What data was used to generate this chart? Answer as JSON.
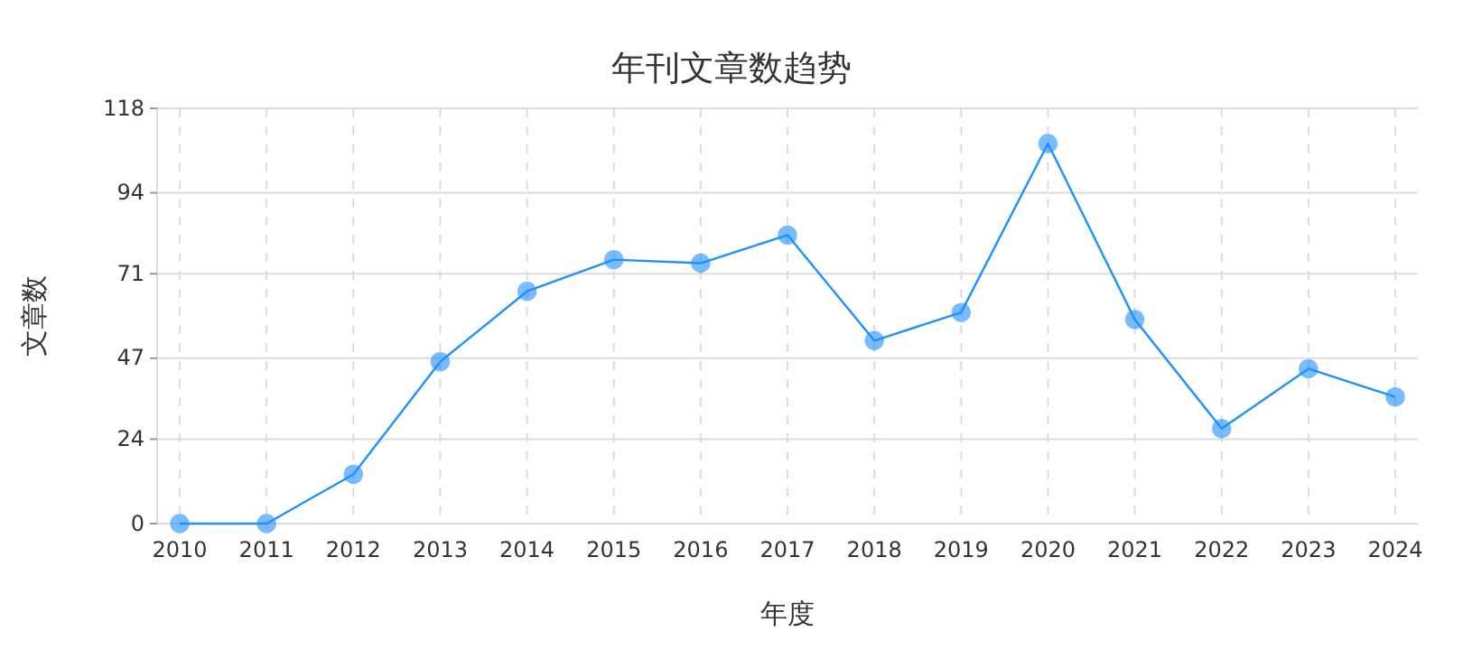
{
  "chart_data": {
    "type": "line",
    "title": "年刊文章数趋势",
    "xlabel": "年度",
    "ylabel": "文章数",
    "categories": [
      "2010",
      "2011",
      "2012",
      "2013",
      "2014",
      "2015",
      "2016",
      "2017",
      "2018",
      "2019",
      "2020",
      "2021",
      "2022",
      "2023",
      "2024"
    ],
    "series": [
      {
        "color": "#1e90ff",
        "values": [
          0,
          0,
          14,
          46,
          66,
          75,
          74,
          82,
          52,
          60,
          108,
          58,
          27,
          44,
          36
        ]
      }
    ],
    "ylim": [
      0,
      118
    ],
    "yticks": [
      0,
      24,
      47,
      71,
      94,
      118
    ],
    "grid": true,
    "marker": "circle",
    "line_style": "solid"
  }
}
